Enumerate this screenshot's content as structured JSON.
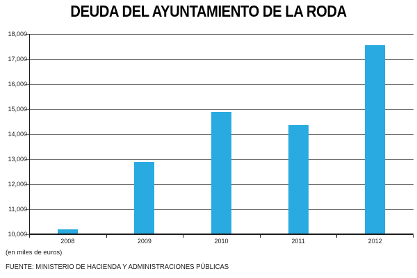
{
  "chart_data": {
    "type": "bar",
    "title": "DEUDA DEL AYUNTAMIENTO DE LA RODA",
    "categories": [
      "2008",
      "2009",
      "2010",
      "2011",
      "2012"
    ],
    "values": [
      10200,
      12900,
      14900,
      14350,
      17550
    ],
    "xlabel": "",
    "ylabel": "",
    "unit_note": "(en miles de euros)",
    "source_note": "FUENTE: MINISTERIO DE HACIENDA Y ADMINISTRACIONES PÚBLICAS",
    "ylim": [
      10000,
      18000
    ],
    "ytick_step": 1000,
    "ytick_labels": [
      "10,000",
      "11,000",
      "12,000",
      "13,000",
      "14,000",
      "15,000",
      "16,000",
      "17,000",
      "18,000"
    ],
    "grid": "on",
    "legend": "none",
    "colors": {
      "bar": "#29ABE2",
      "gridline": "#707070",
      "axis": "#1a1a1a",
      "text": "#1a1a1a",
      "background": "#ffffff"
    }
  }
}
